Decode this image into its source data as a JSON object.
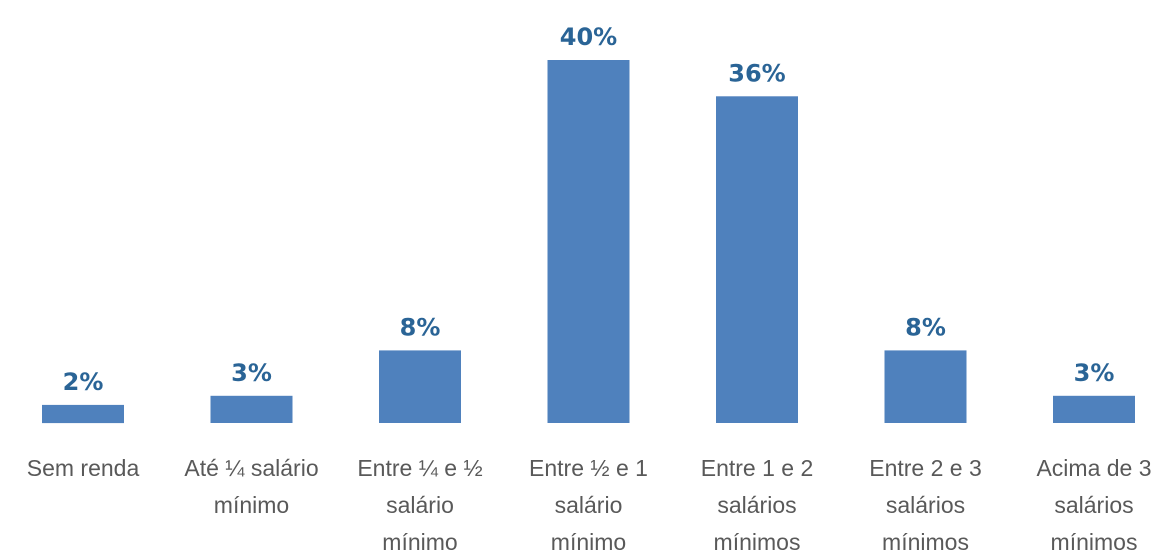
{
  "chart_data": {
    "type": "bar",
    "categories": [
      [
        "Sem renda"
      ],
      [
        "Até ¼ salário",
        "mínimo"
      ],
      [
        "Entre ¼ e ½",
        "salário",
        "mínimo"
      ],
      [
        "Entre ½ e 1",
        "salário",
        "mínimo"
      ],
      [
        "Entre 1 e 2",
        "salários",
        "mínimos"
      ],
      [
        "Entre 2 e 3",
        "salários",
        "mínimos"
      ],
      [
        "Acima de 3",
        "salários",
        "mínimos"
      ]
    ],
    "values": [
      2,
      3,
      8,
      40,
      36,
      8,
      3
    ],
    "value_labels": [
      "2%",
      "3%",
      "8%",
      "40%",
      "36%",
      "8%",
      "3%"
    ],
    "ylim": [
      0,
      40
    ],
    "grid": false,
    "legend": "none",
    "colors": {
      "bar": "#4f81bd",
      "value_label": "#2a6496",
      "category_label": "#595959"
    }
  }
}
